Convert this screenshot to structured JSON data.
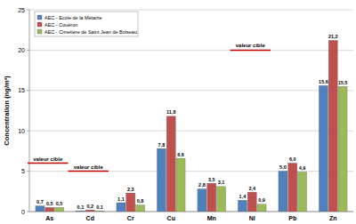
{
  "chart_data": {
    "type": "bar",
    "y_label": "Concentration (ng/m³)",
    "categories": [
      "As",
      "Cd",
      "Cr",
      "Cu",
      "Mn",
      "Ni",
      "Pb",
      "Zn"
    ],
    "series": [
      {
        "name": "AEC - Ecole de la Métairie",
        "color": "#4f81bd",
        "values": [
          0.7,
          0.1,
          1.1,
          7.8,
          2.8,
          1.4,
          5.0,
          15.6
        ],
        "value_labels": [
          "0,7",
          "0,1",
          "1,1",
          "7,8",
          "2,8",
          "1,4",
          "5,0",
          "15,6"
        ]
      },
      {
        "name": "AEC - Couëron",
        "color": "#c0504d",
        "values": [
          0.5,
          0.2,
          2.3,
          11.8,
          3.5,
          2.4,
          6.0,
          21.2
        ],
        "value_labels": [
          "0,5",
          "0,2",
          "2,3",
          "11,8",
          "3,5",
          "2,4",
          "6,0",
          "21,2"
        ]
      },
      {
        "name": "AEC - Cimetière de Saint Jean de Boiseau",
        "color": "#9bbb59",
        "values": [
          0.5,
          0.1,
          0.8,
          6.6,
          3.1,
          0.9,
          4.9,
          15.5
        ],
        "value_labels": [
          "0,5",
          "0,1",
          "0,8",
          "6,6",
          "3,1",
          "0,9",
          "4,9",
          "15,5"
        ]
      }
    ],
    "target_lines": [
      {
        "category": "As",
        "value": 6,
        "label": "valeur cible"
      },
      {
        "category": "Cd",
        "value": 5,
        "label": "valeur cible"
      },
      {
        "category": "Ni",
        "value": 20,
        "label": "valeur cible"
      }
    ],
    "ylim": [
      0,
      25
    ],
    "yticks": [
      0,
      5,
      10,
      15,
      20,
      25
    ],
    "grid": true,
    "legend": "top-left",
    "data_labels": true
  }
}
